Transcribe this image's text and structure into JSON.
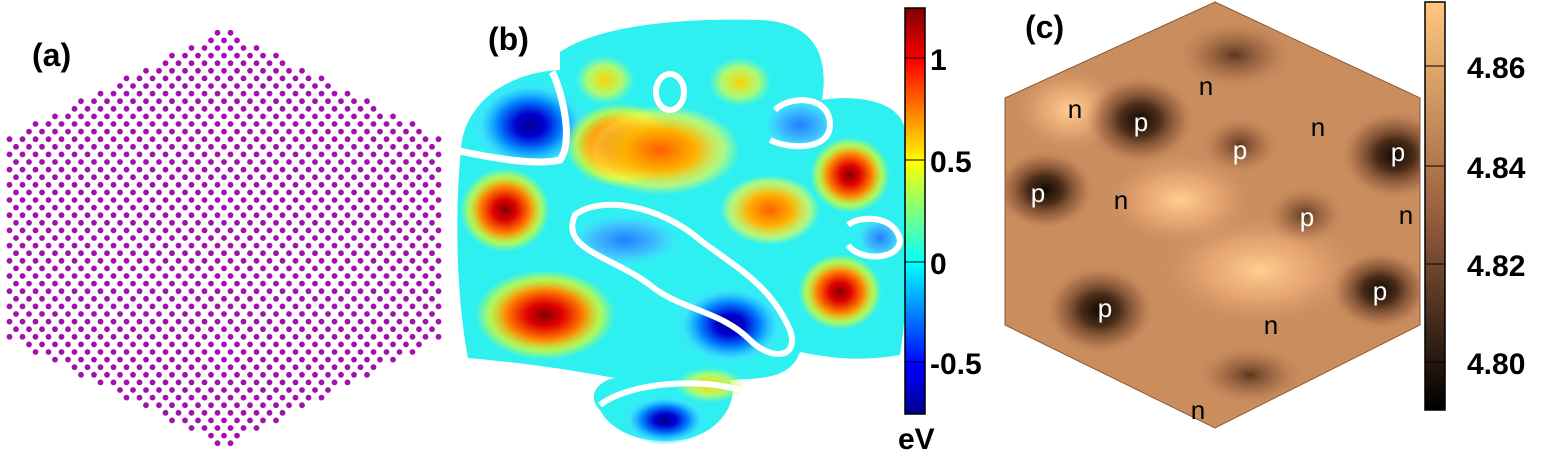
{
  "colors": {
    "atoms": "#a012ae",
    "jet_min": "#00008f",
    "jet_max": "#800000",
    "copper_min": "#000000",
    "copper_max": "#ffc77f",
    "hex_fill": "#c98d5e"
  },
  "panels": {
    "a": {
      "label": "(a)",
      "content": "hexagonal lattice of atoms"
    },
    "b": {
      "label": "(b)",
      "colorbar": {
        "colormap": "jet",
        "unit": "eV",
        "ticks": [
          "1",
          "0.5",
          "0",
          "-0.5"
        ]
      }
    },
    "c": {
      "label": "(c)",
      "colorbar": {
        "colormap": "copper",
        "ticks": [
          "4.86",
          "4.84",
          "4.82",
          "4.80"
        ]
      },
      "regions": [
        {
          "text": "n",
          "color": "#000000"
        },
        {
          "text": "p",
          "color": "#ffffff"
        },
        {
          "text": "n",
          "color": "#000000"
        },
        {
          "text": "n",
          "color": "#000000"
        },
        {
          "text": "p",
          "color": "#ffffff"
        },
        {
          "text": "p",
          "color": "#ffffff"
        },
        {
          "text": "p",
          "color": "#ffffff"
        },
        {
          "text": "n",
          "color": "#000000"
        },
        {
          "text": "p",
          "color": "#ffffff"
        },
        {
          "text": "n",
          "color": "#000000"
        },
        {
          "text": "p",
          "color": "#ffffff"
        },
        {
          "text": "p",
          "color": "#ffffff"
        },
        {
          "text": "n",
          "color": "#000000"
        },
        {
          "text": "n",
          "color": "#000000"
        }
      ]
    }
  }
}
